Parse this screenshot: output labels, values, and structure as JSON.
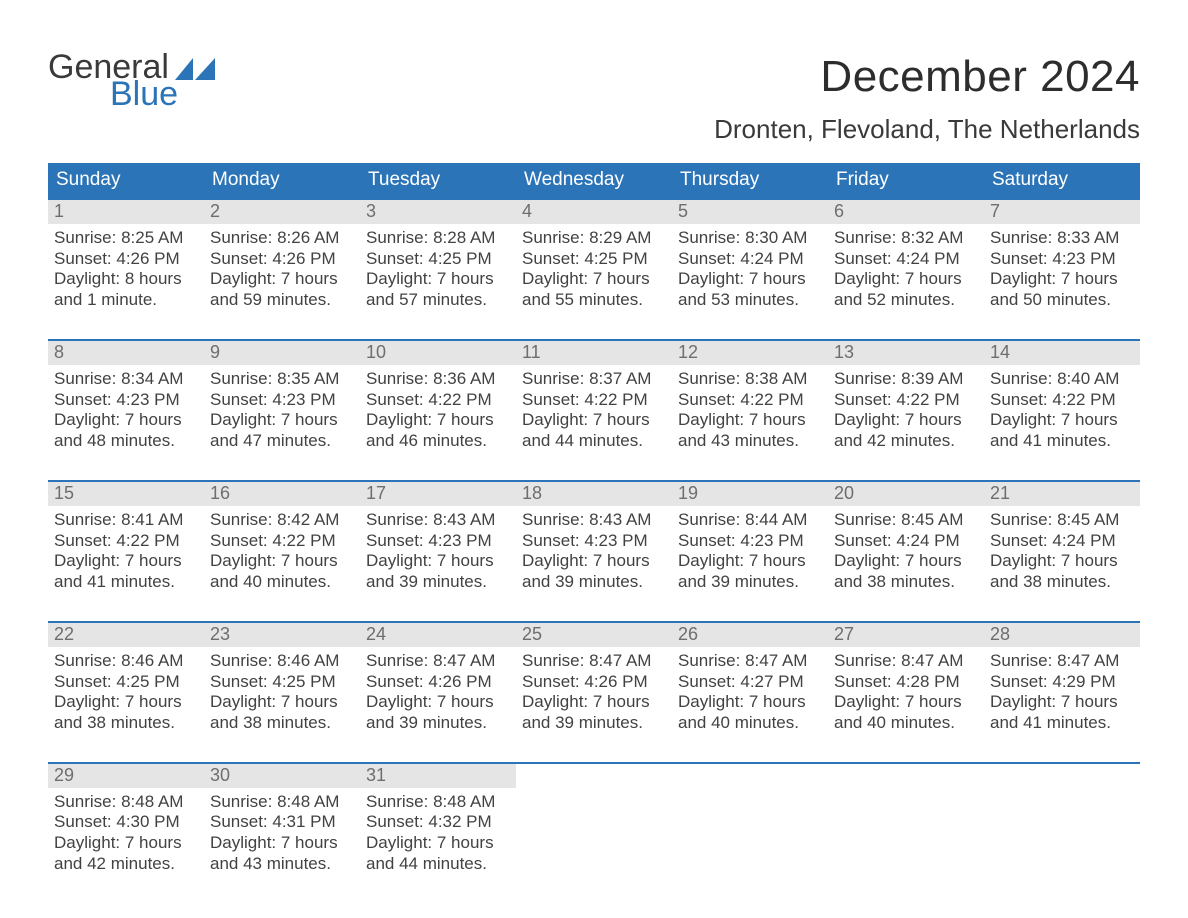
{
  "colors": {
    "accent": "#2b74b8",
    "text": "#424242",
    "daynum": "#6e6e6e",
    "daybar": "#e5e5e5"
  },
  "logo": {
    "word1": "General",
    "word2": "Blue"
  },
  "title": "December 2024",
  "location": "Dronten, Flevoland, The Netherlands",
  "weekdays": [
    "Sunday",
    "Monday",
    "Tuesday",
    "Wednesday",
    "Thursday",
    "Friday",
    "Saturday"
  ],
  "weeks": [
    [
      {
        "n": "1",
        "sunrise": "Sunrise: 8:25 AM",
        "sunset": "Sunset: 4:26 PM",
        "d1": "Daylight: 8 hours",
        "d2": "and 1 minute."
      },
      {
        "n": "2",
        "sunrise": "Sunrise: 8:26 AM",
        "sunset": "Sunset: 4:26 PM",
        "d1": "Daylight: 7 hours",
        "d2": "and 59 minutes."
      },
      {
        "n": "3",
        "sunrise": "Sunrise: 8:28 AM",
        "sunset": "Sunset: 4:25 PM",
        "d1": "Daylight: 7 hours",
        "d2": "and 57 minutes."
      },
      {
        "n": "4",
        "sunrise": "Sunrise: 8:29 AM",
        "sunset": "Sunset: 4:25 PM",
        "d1": "Daylight: 7 hours",
        "d2": "and 55 minutes."
      },
      {
        "n": "5",
        "sunrise": "Sunrise: 8:30 AM",
        "sunset": "Sunset: 4:24 PM",
        "d1": "Daylight: 7 hours",
        "d2": "and 53 minutes."
      },
      {
        "n": "6",
        "sunrise": "Sunrise: 8:32 AM",
        "sunset": "Sunset: 4:24 PM",
        "d1": "Daylight: 7 hours",
        "d2": "and 52 minutes."
      },
      {
        "n": "7",
        "sunrise": "Sunrise: 8:33 AM",
        "sunset": "Sunset: 4:23 PM",
        "d1": "Daylight: 7 hours",
        "d2": "and 50 minutes."
      }
    ],
    [
      {
        "n": "8",
        "sunrise": "Sunrise: 8:34 AM",
        "sunset": "Sunset: 4:23 PM",
        "d1": "Daylight: 7 hours",
        "d2": "and 48 minutes."
      },
      {
        "n": "9",
        "sunrise": "Sunrise: 8:35 AM",
        "sunset": "Sunset: 4:23 PM",
        "d1": "Daylight: 7 hours",
        "d2": "and 47 minutes."
      },
      {
        "n": "10",
        "sunrise": "Sunrise: 8:36 AM",
        "sunset": "Sunset: 4:22 PM",
        "d1": "Daylight: 7 hours",
        "d2": "and 46 minutes."
      },
      {
        "n": "11",
        "sunrise": "Sunrise: 8:37 AM",
        "sunset": "Sunset: 4:22 PM",
        "d1": "Daylight: 7 hours",
        "d2": "and 44 minutes."
      },
      {
        "n": "12",
        "sunrise": "Sunrise: 8:38 AM",
        "sunset": "Sunset: 4:22 PM",
        "d1": "Daylight: 7 hours",
        "d2": "and 43 minutes."
      },
      {
        "n": "13",
        "sunrise": "Sunrise: 8:39 AM",
        "sunset": "Sunset: 4:22 PM",
        "d1": "Daylight: 7 hours",
        "d2": "and 42 minutes."
      },
      {
        "n": "14",
        "sunrise": "Sunrise: 8:40 AM",
        "sunset": "Sunset: 4:22 PM",
        "d1": "Daylight: 7 hours",
        "d2": "and 41 minutes."
      }
    ],
    [
      {
        "n": "15",
        "sunrise": "Sunrise: 8:41 AM",
        "sunset": "Sunset: 4:22 PM",
        "d1": "Daylight: 7 hours",
        "d2": "and 41 minutes."
      },
      {
        "n": "16",
        "sunrise": "Sunrise: 8:42 AM",
        "sunset": "Sunset: 4:22 PM",
        "d1": "Daylight: 7 hours",
        "d2": "and 40 minutes."
      },
      {
        "n": "17",
        "sunrise": "Sunrise: 8:43 AM",
        "sunset": "Sunset: 4:23 PM",
        "d1": "Daylight: 7 hours",
        "d2": "and 39 minutes."
      },
      {
        "n": "18",
        "sunrise": "Sunrise: 8:43 AM",
        "sunset": "Sunset: 4:23 PM",
        "d1": "Daylight: 7 hours",
        "d2": "and 39 minutes."
      },
      {
        "n": "19",
        "sunrise": "Sunrise: 8:44 AM",
        "sunset": "Sunset: 4:23 PM",
        "d1": "Daylight: 7 hours",
        "d2": "and 39 minutes."
      },
      {
        "n": "20",
        "sunrise": "Sunrise: 8:45 AM",
        "sunset": "Sunset: 4:24 PM",
        "d1": "Daylight: 7 hours",
        "d2": "and 38 minutes."
      },
      {
        "n": "21",
        "sunrise": "Sunrise: 8:45 AM",
        "sunset": "Sunset: 4:24 PM",
        "d1": "Daylight: 7 hours",
        "d2": "and 38 minutes."
      }
    ],
    [
      {
        "n": "22",
        "sunrise": "Sunrise: 8:46 AM",
        "sunset": "Sunset: 4:25 PM",
        "d1": "Daylight: 7 hours",
        "d2": "and 38 minutes."
      },
      {
        "n": "23",
        "sunrise": "Sunrise: 8:46 AM",
        "sunset": "Sunset: 4:25 PM",
        "d1": "Daylight: 7 hours",
        "d2": "and 38 minutes."
      },
      {
        "n": "24",
        "sunrise": "Sunrise: 8:47 AM",
        "sunset": "Sunset: 4:26 PM",
        "d1": "Daylight: 7 hours",
        "d2": "and 39 minutes."
      },
      {
        "n": "25",
        "sunrise": "Sunrise: 8:47 AM",
        "sunset": "Sunset: 4:26 PM",
        "d1": "Daylight: 7 hours",
        "d2": "and 39 minutes."
      },
      {
        "n": "26",
        "sunrise": "Sunrise: 8:47 AM",
        "sunset": "Sunset: 4:27 PM",
        "d1": "Daylight: 7 hours",
        "d2": "and 40 minutes."
      },
      {
        "n": "27",
        "sunrise": "Sunrise: 8:47 AM",
        "sunset": "Sunset: 4:28 PM",
        "d1": "Daylight: 7 hours",
        "d2": "and 40 minutes."
      },
      {
        "n": "28",
        "sunrise": "Sunrise: 8:47 AM",
        "sunset": "Sunset: 4:29 PM",
        "d1": "Daylight: 7 hours",
        "d2": "and 41 minutes."
      }
    ],
    [
      {
        "n": "29",
        "sunrise": "Sunrise: 8:48 AM",
        "sunset": "Sunset: 4:30 PM",
        "d1": "Daylight: 7 hours",
        "d2": "and 42 minutes."
      },
      {
        "n": "30",
        "sunrise": "Sunrise: 8:48 AM",
        "sunset": "Sunset: 4:31 PM",
        "d1": "Daylight: 7 hours",
        "d2": "and 43 minutes."
      },
      {
        "n": "31",
        "sunrise": "Sunrise: 8:48 AM",
        "sunset": "Sunset: 4:32 PM",
        "d1": "Daylight: 7 hours",
        "d2": "and 44 minutes."
      },
      {
        "n": "",
        "sunrise": "",
        "sunset": "",
        "d1": "",
        "d2": ""
      },
      {
        "n": "",
        "sunrise": "",
        "sunset": "",
        "d1": "",
        "d2": ""
      },
      {
        "n": "",
        "sunrise": "",
        "sunset": "",
        "d1": "",
        "d2": ""
      },
      {
        "n": "",
        "sunrise": "",
        "sunset": "",
        "d1": "",
        "d2": ""
      }
    ]
  ]
}
